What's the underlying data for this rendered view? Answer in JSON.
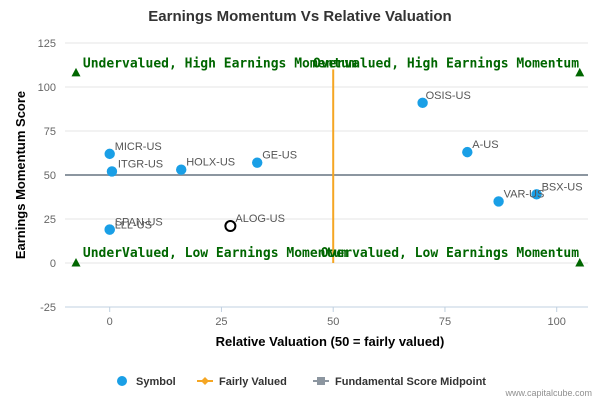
{
  "chart_data": {
    "type": "scatter",
    "title": "Earnings Momentum Vs Relative Valuation",
    "xlabel": "Relative Valuation (50 = fairly valued)",
    "ylabel": "Earnings Momentum Score",
    "xlim": [
      -10,
      107
    ],
    "ylim": [
      -25,
      125
    ],
    "x_ticks": [
      0,
      25,
      50,
      75,
      100
    ],
    "y_ticks": [
      -25,
      0,
      25,
      50,
      75,
      100,
      125
    ],
    "grid": "horizontal",
    "legend_position": "bottom",
    "colors": {
      "symbol": "#1a9fe6",
      "fairly_valued": "#f5a623",
      "midpoint": "#8c96a0",
      "quadrant_text": "#006600",
      "highlight_outline": "#000000"
    },
    "points": [
      {
        "label": "OSIS-US",
        "x": 70,
        "y": 91
      },
      {
        "label": "A-US",
        "x": 80,
        "y": 63
      },
      {
        "label": "BSX-US",
        "x": 95.5,
        "y": 39
      },
      {
        "label": "VAR-US",
        "x": 87,
        "y": 35
      },
      {
        "label": "MICR-US",
        "x": 0,
        "y": 62
      },
      {
        "label": "ITGR-US",
        "x": 0.5,
        "y": 52
      },
      {
        "label": "HOLX-US",
        "x": 16,
        "y": 53
      },
      {
        "label": "GE-US",
        "x": 33,
        "y": 57
      },
      {
        "label": "SPAN-US",
        "x": 0,
        "y": 19
      },
      {
        "label": "LLL-US",
        "x": 0,
        "y": 19
      },
      {
        "label": "ALOG-US",
        "x": 27,
        "y": 21,
        "highlight": true
      }
    ],
    "fairly_valued_x": 50,
    "midpoint_y": 50,
    "quadrant_labels": [
      "Undervalued, High Earnings Momentum",
      "Overvalued, High Earnings Momentum",
      "UnderValued, Low Earnings Momentum",
      "Overvalued, Low Earnings Momentum"
    ],
    "legend": [
      {
        "name": "Symbol",
        "icon": "circle-marker"
      },
      {
        "name": "Fairly Valued",
        "icon": "diamond-line-marker"
      },
      {
        "name": "Fundamental Score Midpoint",
        "icon": "square-line-marker"
      }
    ]
  },
  "credit": "www.capitalcube.com"
}
